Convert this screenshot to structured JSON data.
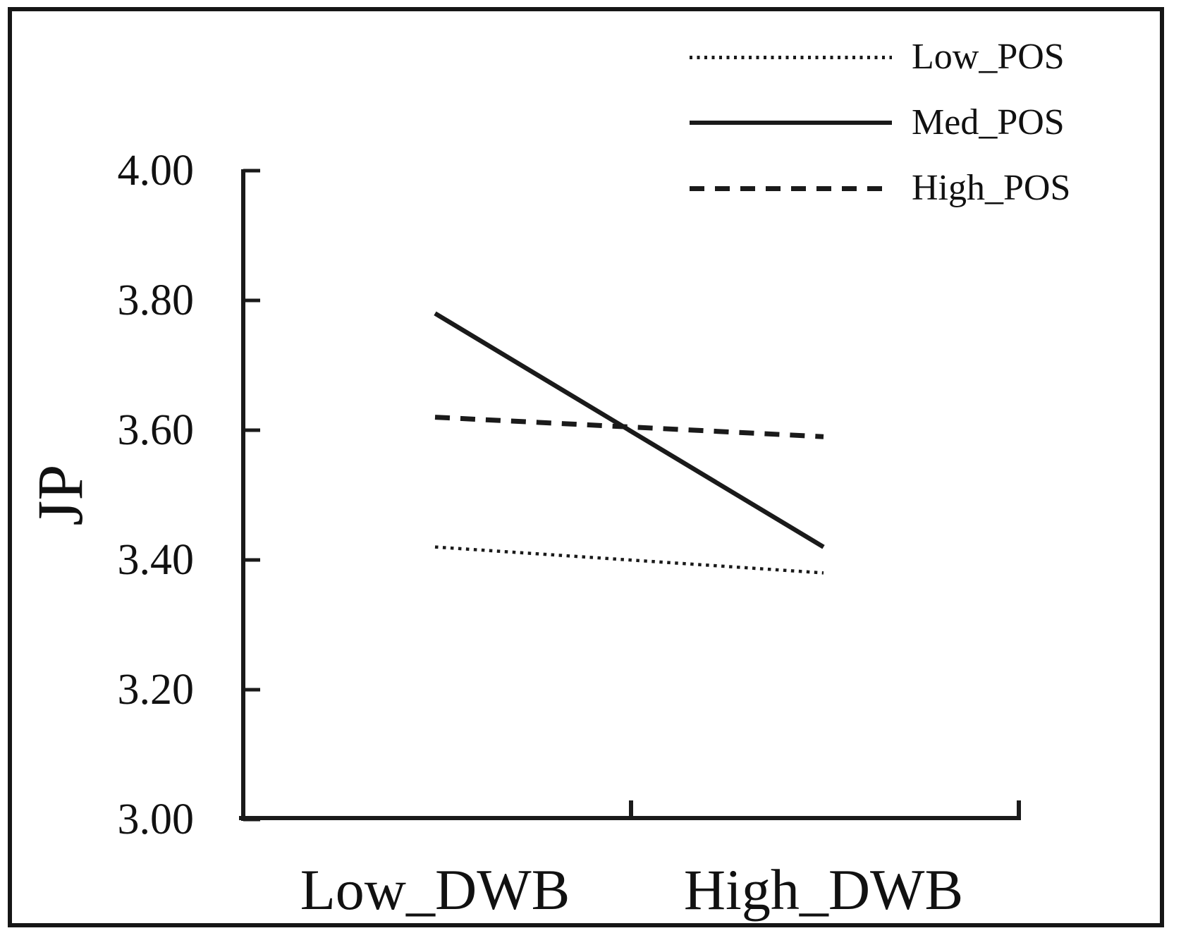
{
  "chart_data": {
    "type": "line",
    "title": "",
    "xlabel": "",
    "ylabel": "JP",
    "categories": [
      "Low_DWB",
      "High_DWB"
    ],
    "series": [
      {
        "name": "Low_POS",
        "style": "dotted",
        "values": [
          3.42,
          3.38
        ]
      },
      {
        "name": "Med_POS",
        "style": "solid",
        "values": [
          3.78,
          3.42
        ]
      },
      {
        "name": "High_POS",
        "style": "dashed",
        "values": [
          3.62,
          3.59
        ]
      }
    ],
    "ylim": [
      3.0,
      4.0
    ],
    "ytick_step": 0.2,
    "ytick_labels": [
      "4.00",
      "3.80",
      "3.60",
      "3.40",
      "3.20",
      "3.00"
    ],
    "legend_position": "top-right",
    "grid": false,
    "line_color": "#1a1a1a",
    "axis_color": "#161616"
  }
}
